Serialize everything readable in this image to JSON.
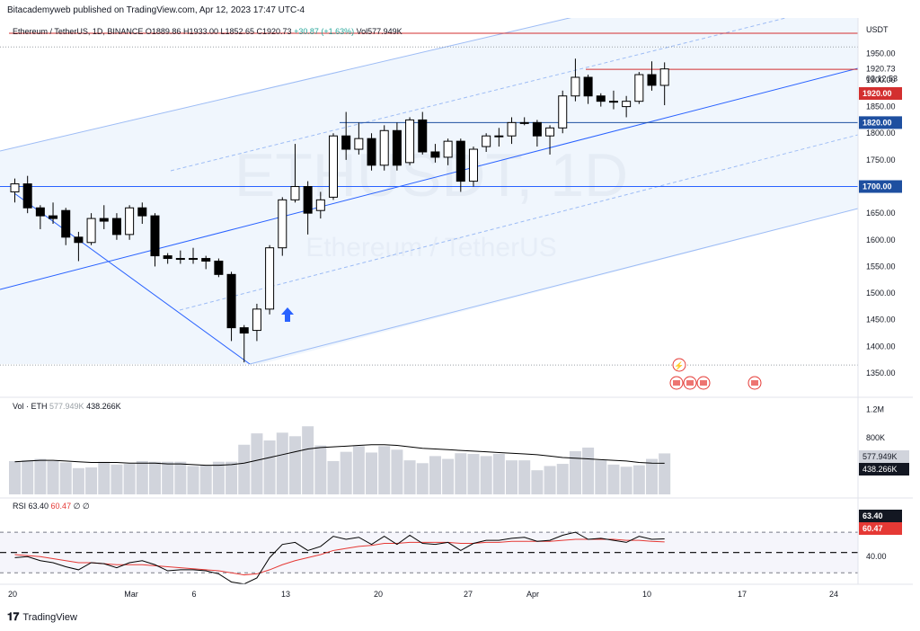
{
  "header": {
    "publisher": "Bitacademyweb published on TradingView.com, Apr 12, 2023 17:47 UTC-4"
  },
  "footer": {
    "brand": "TradingView"
  },
  "symbol_line": {
    "name": "Ethereum / TetherUS, 1D, BINANCE",
    "open": "O1889.86",
    "high": "H1933.00",
    "low": "L1852.65",
    "close": "C1920.73",
    "change": "+30.87 (+1.63%)",
    "volume": "Vol577.949K"
  },
  "watermark": {
    "ticker": "ETHUSDT, 1D",
    "name": "Ethereum / TetherUS"
  },
  "currency": "USDT",
  "colors": {
    "candle_up": "#ffffff",
    "candle_down": "#000000",
    "channel_fill": "#e3eefb",
    "channel_line": "#2962ff",
    "resistance": "#d32f2f",
    "support_label_bg": "#1e4fa0",
    "resistance_label_bg": "#d32f2f",
    "volume_bar": "#d1d4dc",
    "volume_ma": "#000000",
    "rsi_line": "#000000",
    "rsi_ma": "#e53935"
  },
  "price_labels": {
    "last": "1920.73",
    "countdown": "02:12:53",
    "level_1920": "1920.00",
    "level_1820": "1820.00",
    "level_1700": "1700.00"
  },
  "volume_pane": {
    "label": "Vol · ETH",
    "vol_value": "577.949K",
    "ma_value": "438.266K",
    "tick_1_2m": "1.2M",
    "tick_800k": "800K"
  },
  "rsi_pane": {
    "label": "RSI",
    "rsi_value": "63.40",
    "ma_value": "60.47",
    "extra": "∅ ∅",
    "tick_40": "40.00"
  },
  "chart_data": {
    "type": "candlestick",
    "title": "Ethereum / TetherUS, 1D, BINANCE",
    "y_ticks": [
      1350,
      1400,
      1450,
      1500,
      1550,
      1600,
      1650,
      1700,
      1750,
      1800,
      1850,
      1900,
      1950
    ],
    "x_ticks": [
      "20",
      "Mar",
      "6",
      "13",
      "20",
      "27",
      "Apr",
      "10",
      "17",
      "24"
    ],
    "candles": [
      {
        "date": "2023-02-20",
        "o": 1690,
        "h": 1715,
        "l": 1670,
        "c": 1705
      },
      {
        "date": "2023-02-21",
        "o": 1705,
        "h": 1720,
        "l": 1650,
        "c": 1660
      },
      {
        "date": "2023-02-22",
        "o": 1660,
        "h": 1665,
        "l": 1620,
        "c": 1645
      },
      {
        "date": "2023-02-23",
        "o": 1645,
        "h": 1670,
        "l": 1630,
        "c": 1640
      },
      {
        "date": "2023-02-24",
        "o": 1655,
        "h": 1660,
        "l": 1590,
        "c": 1605
      },
      {
        "date": "2023-02-25",
        "o": 1605,
        "h": 1615,
        "l": 1560,
        "c": 1595
      },
      {
        "date": "2023-02-26",
        "o": 1595,
        "h": 1650,
        "l": 1590,
        "c": 1640
      },
      {
        "date": "2023-02-27",
        "o": 1640,
        "h": 1665,
        "l": 1620,
        "c": 1635
      },
      {
        "date": "2023-02-28",
        "o": 1640,
        "h": 1650,
        "l": 1600,
        "c": 1610
      },
      {
        "date": "2023-03-01",
        "o": 1610,
        "h": 1665,
        "l": 1600,
        "c": 1660
      },
      {
        "date": "2023-03-02",
        "o": 1660,
        "h": 1670,
        "l": 1630,
        "c": 1645
      },
      {
        "date": "2023-03-03",
        "o": 1645,
        "h": 1650,
        "l": 1550,
        "c": 1570
      },
      {
        "date": "2023-03-04",
        "o": 1570,
        "h": 1575,
        "l": 1555,
        "c": 1565
      },
      {
        "date": "2023-03-05",
        "o": 1565,
        "h": 1580,
        "l": 1555,
        "c": 1565
      },
      {
        "date": "2023-03-06",
        "o": 1565,
        "h": 1585,
        "l": 1555,
        "c": 1565
      },
      {
        "date": "2023-03-07",
        "o": 1565,
        "h": 1570,
        "l": 1545,
        "c": 1560
      },
      {
        "date": "2023-03-08",
        "o": 1560,
        "h": 1565,
        "l": 1530,
        "c": 1535
      },
      {
        "date": "2023-03-09",
        "o": 1535,
        "h": 1540,
        "l": 1410,
        "c": 1435
      },
      {
        "date": "2023-03-10",
        "o": 1435,
        "h": 1440,
        "l": 1370,
        "c": 1425
      },
      {
        "date": "2023-03-11",
        "o": 1430,
        "h": 1480,
        "l": 1410,
        "c": 1470
      },
      {
        "date": "2023-03-12",
        "o": 1470,
        "h": 1590,
        "l": 1460,
        "c": 1585
      },
      {
        "date": "2023-03-13",
        "o": 1585,
        "h": 1680,
        "l": 1570,
        "c": 1675
      },
      {
        "date": "2023-03-14",
        "o": 1675,
        "h": 1780,
        "l": 1670,
        "c": 1700
      },
      {
        "date": "2023-03-15",
        "o": 1700,
        "h": 1710,
        "l": 1610,
        "c": 1650
      },
      {
        "date": "2023-03-16",
        "o": 1655,
        "h": 1690,
        "l": 1640,
        "c": 1675
      },
      {
        "date": "2023-03-17",
        "o": 1680,
        "h": 1800,
        "l": 1675,
        "c": 1795
      },
      {
        "date": "2023-03-18",
        "o": 1795,
        "h": 1840,
        "l": 1750,
        "c": 1770
      },
      {
        "date": "2023-03-19",
        "o": 1770,
        "h": 1820,
        "l": 1760,
        "c": 1790
      },
      {
        "date": "2023-03-20",
        "o": 1790,
        "h": 1800,
        "l": 1730,
        "c": 1740
      },
      {
        "date": "2023-03-21",
        "o": 1740,
        "h": 1815,
        "l": 1730,
        "c": 1805
      },
      {
        "date": "2023-03-22",
        "o": 1805,
        "h": 1820,
        "l": 1730,
        "c": 1740
      },
      {
        "date": "2023-03-23",
        "o": 1745,
        "h": 1830,
        "l": 1740,
        "c": 1825
      },
      {
        "date": "2023-03-24",
        "o": 1825,
        "h": 1840,
        "l": 1760,
        "c": 1765
      },
      {
        "date": "2023-03-25",
        "o": 1765,
        "h": 1780,
        "l": 1745,
        "c": 1755
      },
      {
        "date": "2023-03-26",
        "o": 1755,
        "h": 1790,
        "l": 1740,
        "c": 1785
      },
      {
        "date": "2023-03-27",
        "o": 1785,
        "h": 1790,
        "l": 1690,
        "c": 1710
      },
      {
        "date": "2023-03-28",
        "o": 1710,
        "h": 1775,
        "l": 1700,
        "c": 1770
      },
      {
        "date": "2023-03-29",
        "o": 1775,
        "h": 1800,
        "l": 1765,
        "c": 1795
      },
      {
        "date": "2023-03-30",
        "o": 1795,
        "h": 1810,
        "l": 1775,
        "c": 1795
      },
      {
        "date": "2023-03-31",
        "o": 1795,
        "h": 1830,
        "l": 1780,
        "c": 1820
      },
      {
        "date": "2023-04-01",
        "o": 1820,
        "h": 1830,
        "l": 1815,
        "c": 1820
      },
      {
        "date": "2023-04-02",
        "o": 1820,
        "h": 1825,
        "l": 1775,
        "c": 1795
      },
      {
        "date": "2023-04-03",
        "o": 1795,
        "h": 1815,
        "l": 1760,
        "c": 1810
      },
      {
        "date": "2023-04-04",
        "o": 1810,
        "h": 1880,
        "l": 1800,
        "c": 1870
      },
      {
        "date": "2023-04-05",
        "o": 1870,
        "h": 1940,
        "l": 1860,
        "c": 1905
      },
      {
        "date": "2023-04-06",
        "o": 1905,
        "h": 1910,
        "l": 1855,
        "c": 1870
      },
      {
        "date": "2023-04-07",
        "o": 1870,
        "h": 1875,
        "l": 1850,
        "c": 1860
      },
      {
        "date": "2023-04-08",
        "o": 1860,
        "h": 1880,
        "l": 1845,
        "c": 1860
      },
      {
        "date": "2023-04-09",
        "o": 1850,
        "h": 1870,
        "l": 1830,
        "c": 1860
      },
      {
        "date": "2023-04-10",
        "o": 1860,
        "h": 1915,
        "l": 1855,
        "c": 1910
      },
      {
        "date": "2023-04-11",
        "o": 1910,
        "h": 1935,
        "l": 1880,
        "c": 1890
      },
      {
        "date": "2023-04-12",
        "o": 1889.86,
        "h": 1933,
        "l": 1852.65,
        "c": 1920.73
      }
    ],
    "volume_values_k": [
      470,
      480,
      500,
      470,
      450,
      370,
      380,
      460,
      420,
      430,
      470,
      460,
      460,
      460,
      400,
      410,
      460,
      460,
      700,
      860,
      760,
      870,
      820,
      960,
      690,
      470,
      600,
      680,
      590,
      680,
      630,
      480,
      440,
      540,
      500,
      580,
      570,
      540,
      570,
      480,
      480,
      340,
      400,
      430,
      610,
      660,
      480,
      420,
      390,
      410,
      500,
      577.949
    ],
    "volume_ma_k": [
      460,
      470,
      480,
      480,
      470,
      460,
      450,
      450,
      450,
      440,
      440,
      440,
      430,
      430,
      420,
      410,
      410,
      420,
      440,
      480,
      520,
      560,
      600,
      640,
      660,
      670,
      680,
      690,
      700,
      700,
      690,
      670,
      650,
      640,
      630,
      620,
      610,
      600,
      590,
      580,
      570,
      560,
      540,
      520,
      510,
      500,
      490,
      480,
      470,
      450,
      440,
      438.266
    ],
    "rsi": [
      45,
      46,
      42,
      40,
      36,
      33,
      40,
      39,
      35,
      40,
      42,
      38,
      32,
      33,
      33,
      32,
      29,
      21,
      19,
      25,
      45,
      58,
      60,
      52,
      56,
      66,
      63,
      65,
      58,
      66,
      58,
      67,
      59,
      58,
      60,
      52,
      59,
      62,
      62,
      64,
      65,
      61,
      62,
      67,
      70,
      63,
      64,
      62,
      60,
      66,
      63,
      63.4
    ],
    "rsi_ma": [
      48,
      47,
      46,
      44,
      42,
      40,
      40,
      39,
      38,
      38,
      38,
      37,
      36,
      35,
      34,
      33,
      32,
      30,
      28,
      29,
      33,
      38,
      42,
      45,
      48,
      52,
      54,
      56,
      57,
      59,
      59,
      60,
      60,
      60,
      60,
      59,
      59,
      60,
      60,
      61,
      61,
      61,
      61,
      62,
      63,
      63,
      63,
      63,
      62,
      62,
      61,
      60.47
    ],
    "levels": [
      1920,
      1820,
      1700
    ],
    "current_price": 1920.73
  }
}
